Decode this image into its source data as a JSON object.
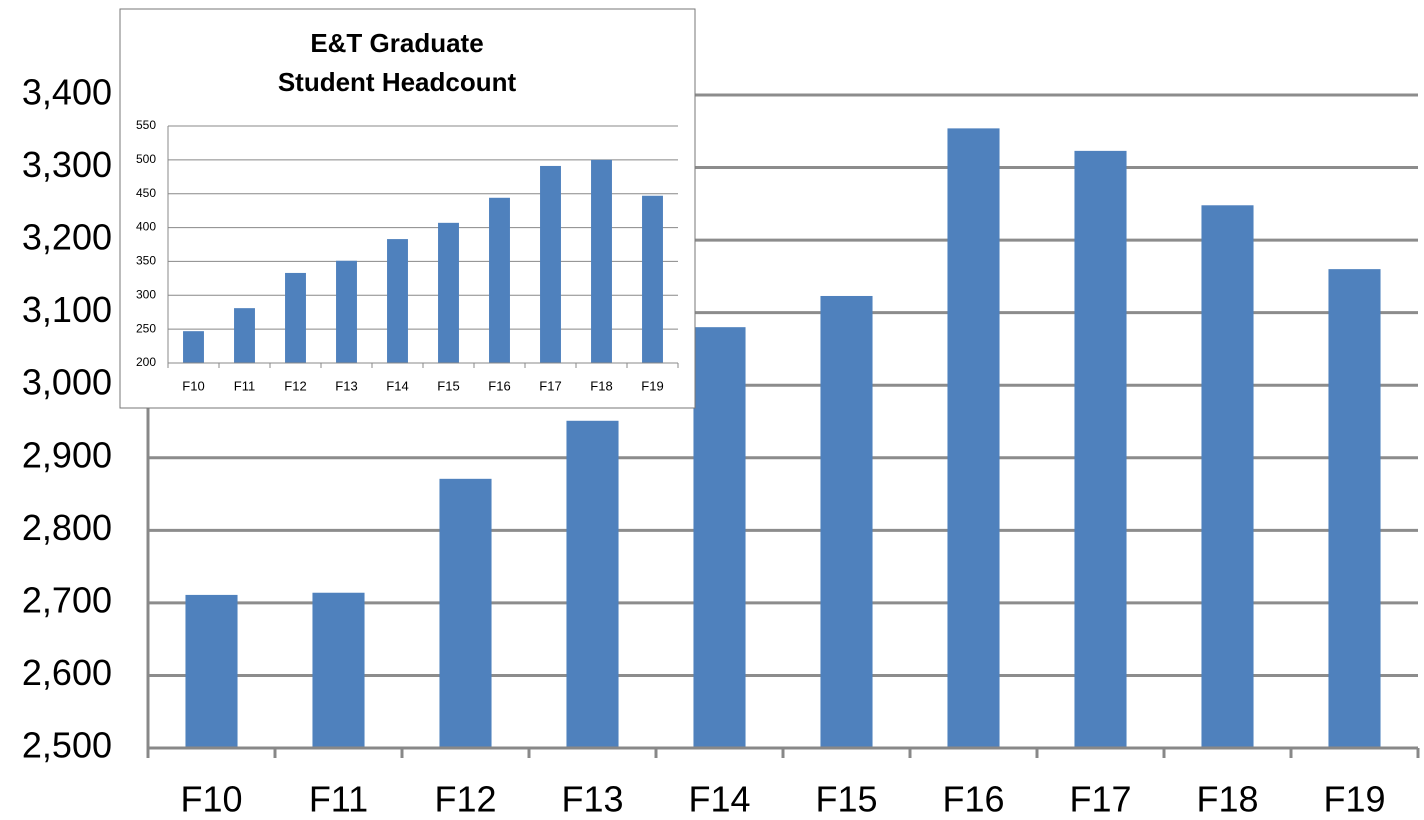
{
  "chart_data": [
    {
      "type": "bar",
      "categories": [
        "F10",
        "F11",
        "F12",
        "F13",
        "F14",
        "F15",
        "F16",
        "F17",
        "F18",
        "F19"
      ],
      "values": [
        2711,
        2714,
        2871,
        2951,
        3080,
        3123,
        3354,
        3323,
        3248,
        3160
      ],
      "color": "#4f81bd",
      "ylim": [
        2500,
        3400
      ],
      "yticks": [
        {
          "value": 2500,
          "label": "2,500"
        },
        {
          "value": 2600,
          "label": "2,600"
        },
        {
          "value": 2700,
          "label": "2,700"
        },
        {
          "value": 2800,
          "label": "2,800"
        },
        {
          "value": 2900,
          "label": "2,900"
        },
        {
          "value": 3000,
          "label": "3,000"
        },
        {
          "value": 3100,
          "label": "3,100"
        },
        {
          "value": 3200,
          "label": "3,200"
        },
        {
          "value": 3300,
          "label": "3,300"
        },
        {
          "value": 3400,
          "label": "3,400"
        }
      ],
      "grid": true
    },
    {
      "type": "bar",
      "title": [
        "E&T Graduate",
        "Student Headcount"
      ],
      "categories": [
        "F10",
        "F11",
        "F12",
        "F13",
        "F14",
        "F15",
        "F16",
        "F17",
        "F18",
        "F19"
      ],
      "values": [
        247,
        281,
        333,
        351,
        383,
        407,
        444,
        491,
        500,
        447
      ],
      "color": "#4f81bd",
      "ylim": [
        200,
        550
      ],
      "yticks": [
        200,
        250,
        300,
        350,
        400,
        450,
        500,
        550
      ],
      "grid": true
    }
  ]
}
